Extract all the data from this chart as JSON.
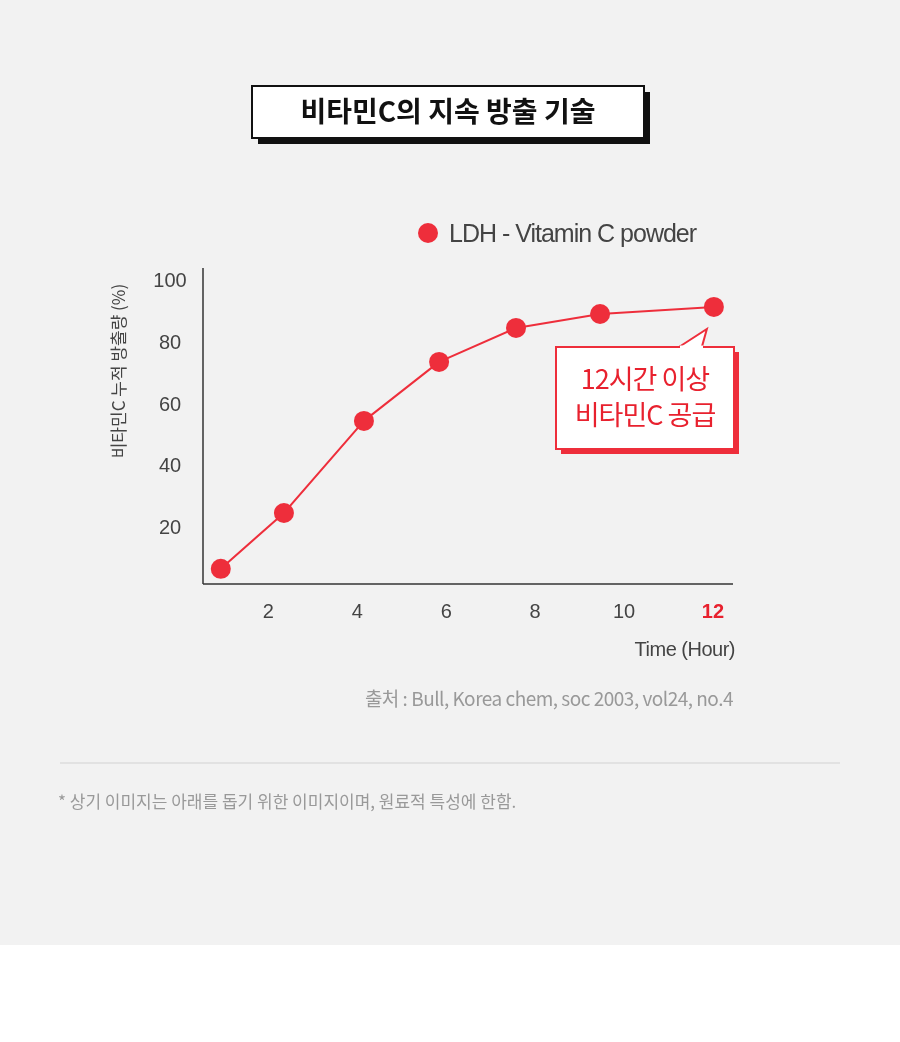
{
  "chart_data": {
    "type": "line",
    "title": "비타민C의 지속 방출 기술",
    "xlabel": "Time (Hour)",
    "ylabel": "비타민C 누적 방출량 (%)",
    "x": [
      0.93,
      2.35,
      4.15,
      5.84,
      7.57,
      9.46,
      12.02
    ],
    "series": [
      {
        "name": "LDH - Vitamin C powder",
        "color": "#ee2e3b",
        "values": [
          6.5,
          24.6,
          54.4,
          73.5,
          84.5,
          89,
          91.3
        ]
      }
    ],
    "xlim": [
      0.53,
      12.45
    ],
    "xticks": [
      2,
      4,
      6,
      8,
      10,
      12
    ],
    "ylim": [
      1.6,
      103.9
    ],
    "yticks": [
      20,
      40,
      60,
      80,
      100
    ],
    "marker": "circle",
    "line_style": "solid",
    "legend": "top right",
    "grid": false,
    "annotations": [
      {
        "text": "12시간 이상\n비타민C 공급",
        "x": 12.02,
        "y": 91.3
      },
      "출처 : Bull, Korea chem, soc 2003, vol24, no.4",
      "* 상기 이미지는 아래를 돕기 위한 이미지이며, 원료적 특성에 한함."
    ]
  }
}
